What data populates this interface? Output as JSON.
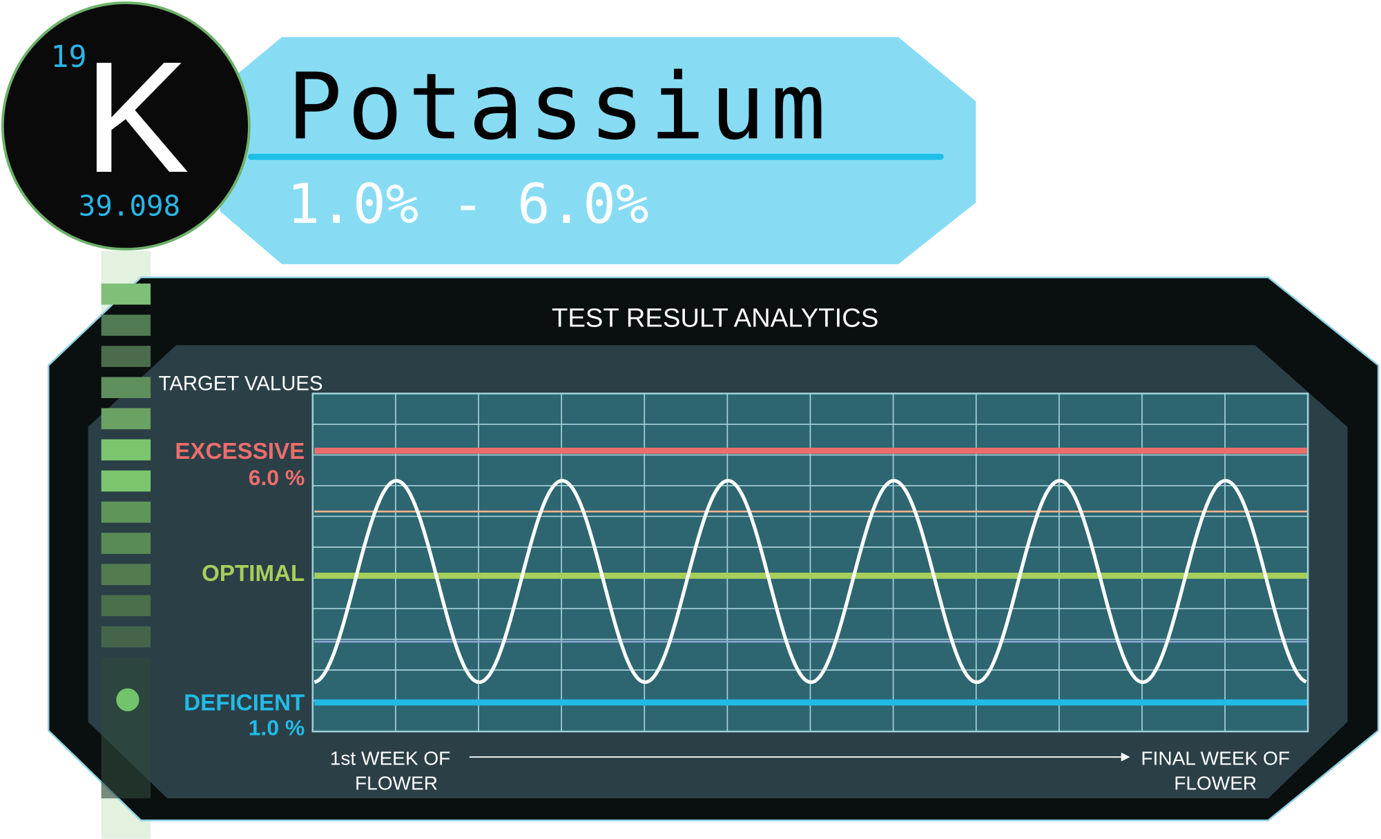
{
  "element": {
    "number": "19",
    "symbol": "K",
    "mass": "39.098",
    "name": "Potassium",
    "range": "1.0% - 6.0%"
  },
  "panel": {
    "title": "TEST RESULT ANALYTICS",
    "target_label": "TARGET VALUES",
    "levels": [
      {
        "label": "EXCESSIVE",
        "value": "6.0 %"
      },
      {
        "label": "OPTIMAL"
      },
      {
        "label": "DEFICIENT",
        "value": "1.0 %"
      }
    ],
    "x_start": [
      "1st WEEK OF",
      "FLOWER"
    ],
    "x_end": [
      "FINAL WEEK OF",
      "FLOWER"
    ]
  }
}
